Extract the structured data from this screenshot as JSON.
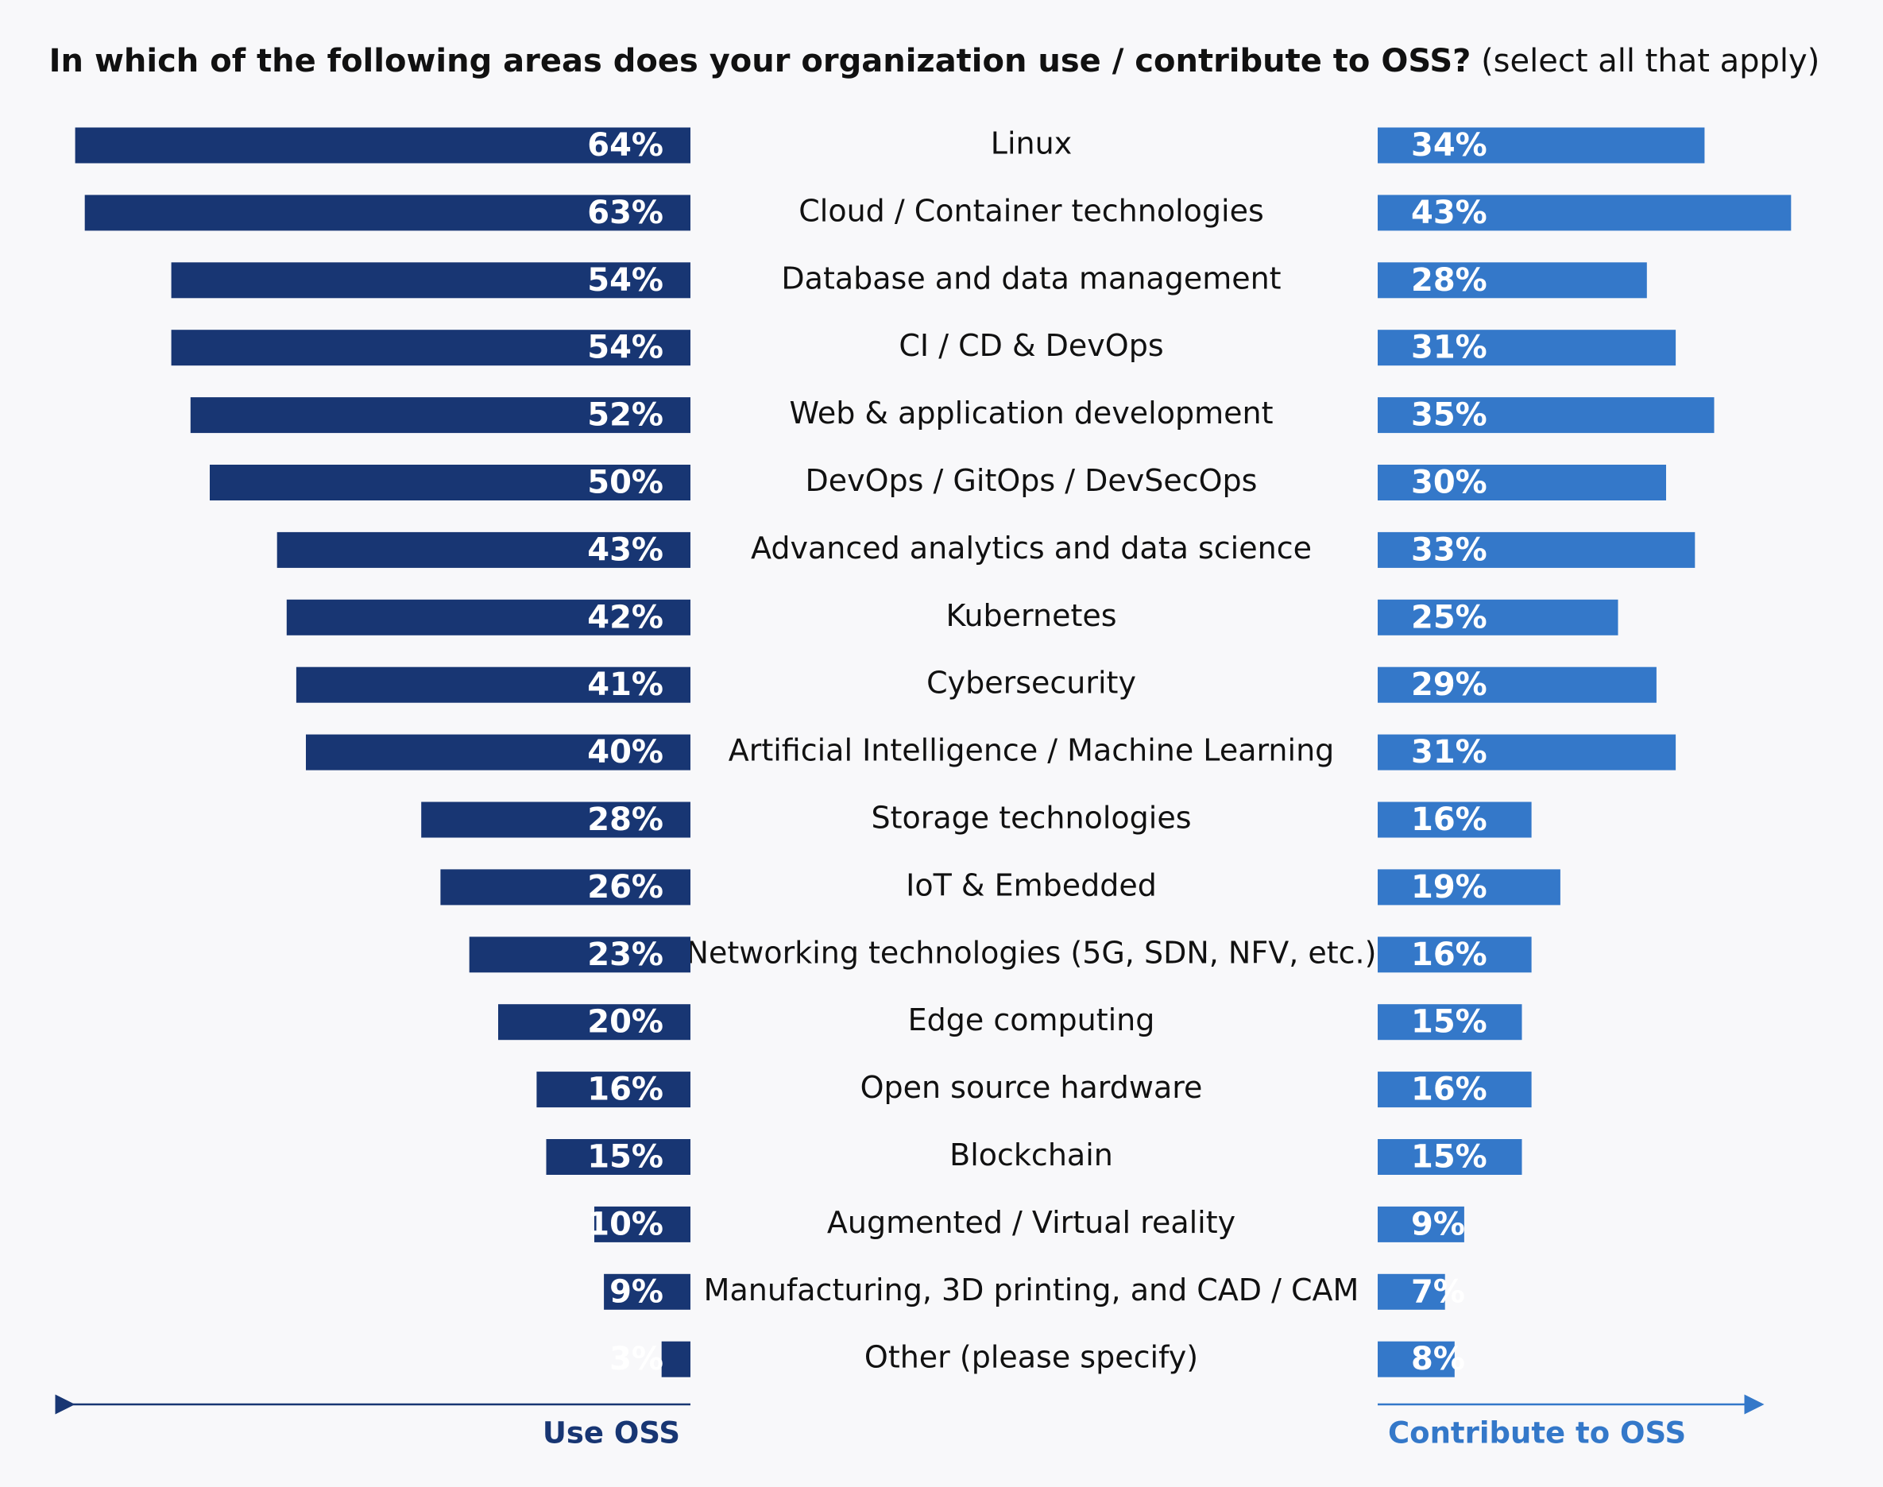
{
  "chart_data": {
    "type": "bar",
    "title": "In which of the following areas does your organization use / contribute to OSS?",
    "subtitle": "(select all that apply)",
    "categories": [
      "Linux",
      "Cloud / Container technologies",
      "Database and data management",
      "CI / CD & DevOps",
      "Web & application development",
      "DevOps / GitOps / DevSecOps",
      "Advanced analytics and data science",
      "Kubernetes",
      "Cybersecurity",
      "Artificial Intelligence / Machine Learning",
      "Storage technologies",
      "IoT & Embedded",
      "Networking technologies (5G, SDN, NFV, etc.)",
      "Edge computing",
      "Open source hardware",
      "Blockchain",
      "Augmented / Virtual reality",
      "Manufacturing, 3D printing, and CAD / CAM",
      "Other (please specify)"
    ],
    "series": [
      {
        "name": "Use OSS",
        "color": "#183673",
        "values": [
          64,
          63,
          54,
          54,
          52,
          50,
          43,
          42,
          41,
          40,
          28,
          26,
          23,
          20,
          16,
          15,
          10,
          9,
          3
        ],
        "value_labels": [
          "64%",
          "63%",
          "54%",
          "54%",
          "52%",
          "50%",
          "43%",
          "42%",
          "41%",
          "40%",
          "28%",
          "26%",
          "23%",
          "20%",
          "16%",
          "15%",
          "10%",
          "9%",
          "3%"
        ]
      },
      {
        "name": "Contribute to OSS",
        "color": "#3478c9",
        "values": [
          34,
          43,
          28,
          31,
          35,
          30,
          33,
          25,
          29,
          31,
          16,
          19,
          16,
          15,
          16,
          15,
          9,
          7,
          8
        ],
        "value_labels": [
          "34%",
          "43%",
          "28%",
          "31%",
          "35%",
          "30%",
          "33%",
          "25%",
          "29%",
          "31%",
          "16%",
          "19%",
          "16%",
          "15%",
          "16%",
          "15%",
          "9%",
          "7%",
          "8%"
        ]
      }
    ]
  }
}
